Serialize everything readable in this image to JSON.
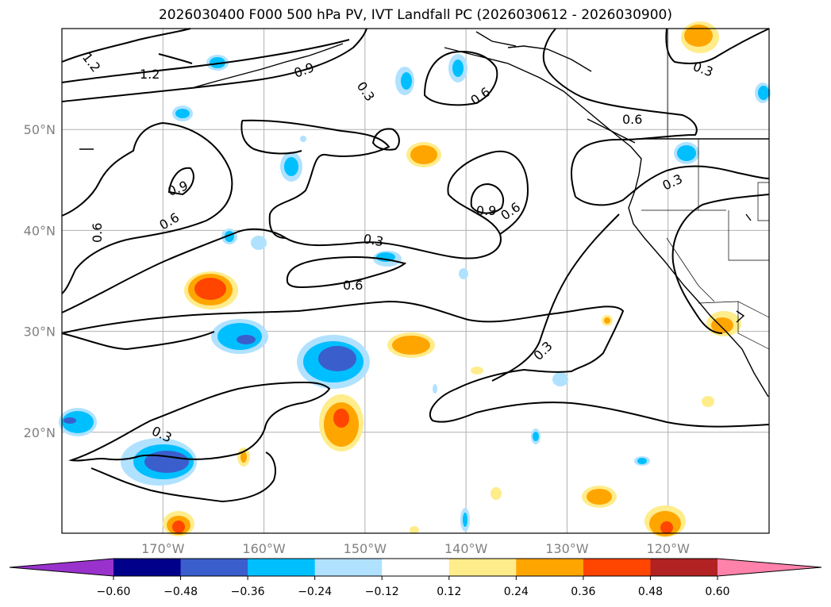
{
  "title": "2026030400 F000 500 hPa PV, IVT Landfall PC (2026030612 - 2026030900)",
  "map": {
    "lon_range": [
      -180,
      -110
    ],
    "lat_range": [
      10,
      60
    ],
    "lat_labels": [
      "50°N",
      "40°N",
      "30°N",
      "20°N"
    ],
    "lat_values": [
      50,
      40,
      30,
      20
    ],
    "lon_labels": [
      "170°W",
      "160°W",
      "150°W",
      "140°W",
      "130°W",
      "120°W"
    ],
    "lon_values": [
      -170,
      -160,
      -150,
      -140,
      -130,
      -120
    ],
    "gridlines": true
  },
  "contour_labels": [
    "1.2",
    "1.2",
    "0.9",
    "0.3",
    "0.6",
    "0.6",
    "0.9",
    "0.6",
    "0.9",
    "0.6",
    "0.3",
    "0.3",
    "0.6",
    "0.3",
    "0.3",
    "0.3"
  ],
  "colorbar": {
    "ticks": [
      "−0.60",
      "−0.48",
      "−0.36",
      "−0.24",
      "−0.12",
      "0.12",
      "0.24",
      "0.36",
      "0.48",
      "0.60"
    ],
    "colors": [
      "#9932cc",
      "#00008b",
      "#3a5fcd",
      "#00bfff",
      "#b0e2ff",
      "#ffffff",
      "#ffec8b",
      "#ffa500",
      "#ff4500",
      "#b22222",
      "#ff82ab"
    ],
    "extend": "both"
  }
}
